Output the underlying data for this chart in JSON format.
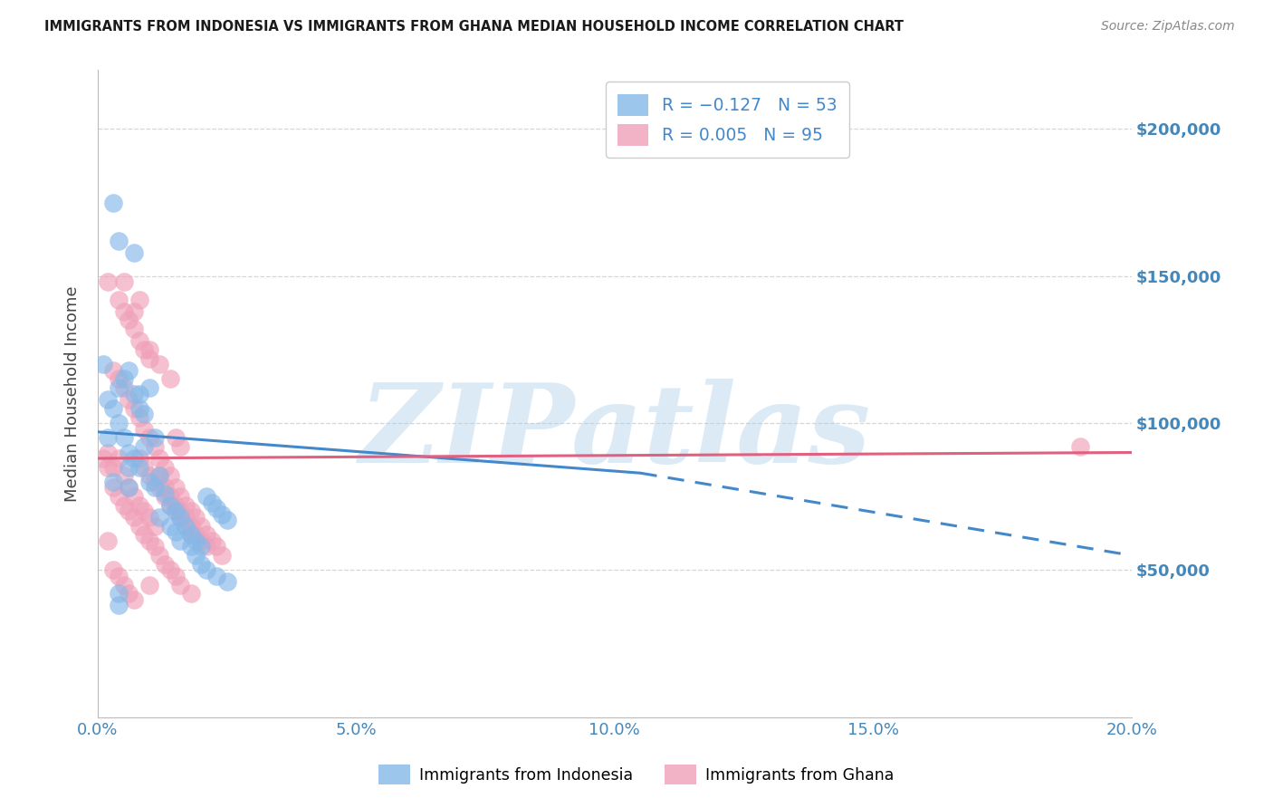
{
  "title": "IMMIGRANTS FROM INDONESIA VS IMMIGRANTS FROM GHANA MEDIAN HOUSEHOLD INCOME CORRELATION CHART",
  "source": "Source: ZipAtlas.com",
  "ylabel": "Median Household Income",
  "xlim": [
    0.0,
    0.2
  ],
  "ylim": [
    0,
    220000
  ],
  "yticks": [
    50000,
    100000,
    150000,
    200000
  ],
  "ytick_labels": [
    "$50,000",
    "$100,000",
    "$150,000",
    "$200,000"
  ],
  "xticks": [
    0.0,
    0.05,
    0.1,
    0.15,
    0.2
  ],
  "xtick_labels": [
    "0.0%",
    "5.0%",
    "10.0%",
    "15.0%",
    "20.0%"
  ],
  "indonesia_color": "#85b8e8",
  "ghana_color": "#f0a0b8",
  "indonesia_line_color": "#4488cc",
  "ghana_line_color": "#e06080",
  "indonesia_line_solid": [
    [
      0.0,
      97000
    ],
    [
      0.105,
      83000
    ]
  ],
  "indonesia_line_dashed": [
    [
      0.105,
      83000
    ],
    [
      0.2,
      55000
    ]
  ],
  "ghana_line": [
    [
      0.0,
      88000
    ],
    [
      0.2,
      90000
    ]
  ],
  "indonesia_scatter": [
    [
      0.001,
      120000
    ],
    [
      0.002,
      108000
    ],
    [
      0.002,
      95000
    ],
    [
      0.003,
      105000
    ],
    [
      0.003,
      175000
    ],
    [
      0.003,
      80000
    ],
    [
      0.004,
      112000
    ],
    [
      0.004,
      162000
    ],
    [
      0.004,
      100000
    ],
    [
      0.004,
      42000
    ],
    [
      0.005,
      115000
    ],
    [
      0.005,
      95000
    ],
    [
      0.006,
      118000
    ],
    [
      0.006,
      90000
    ],
    [
      0.006,
      78000
    ],
    [
      0.006,
      85000
    ],
    [
      0.007,
      110000
    ],
    [
      0.007,
      88000
    ],
    [
      0.007,
      158000
    ],
    [
      0.008,
      105000
    ],
    [
      0.008,
      85000
    ],
    [
      0.008,
      110000
    ],
    [
      0.009,
      92000
    ],
    [
      0.009,
      103000
    ],
    [
      0.01,
      80000
    ],
    [
      0.01,
      112000
    ],
    [
      0.011,
      78000
    ],
    [
      0.011,
      95000
    ],
    [
      0.012,
      82000
    ],
    [
      0.012,
      68000
    ],
    [
      0.013,
      76000
    ],
    [
      0.014,
      72000
    ],
    [
      0.014,
      65000
    ],
    [
      0.015,
      70000
    ],
    [
      0.015,
      63000
    ],
    [
      0.016,
      68000
    ],
    [
      0.016,
      60000
    ],
    [
      0.017,
      65000
    ],
    [
      0.018,
      62000
    ],
    [
      0.018,
      58000
    ],
    [
      0.019,
      60000
    ],
    [
      0.019,
      55000
    ],
    [
      0.02,
      58000
    ],
    [
      0.02,
      52000
    ],
    [
      0.021,
      75000
    ],
    [
      0.021,
      50000
    ],
    [
      0.022,
      73000
    ],
    [
      0.023,
      71000
    ],
    [
      0.023,
      48000
    ],
    [
      0.024,
      69000
    ],
    [
      0.025,
      67000
    ],
    [
      0.025,
      46000
    ],
    [
      0.004,
      38000
    ]
  ],
  "ghana_scatter": [
    [
      0.001,
      88000
    ],
    [
      0.002,
      90000
    ],
    [
      0.002,
      148000
    ],
    [
      0.002,
      85000
    ],
    [
      0.002,
      60000
    ],
    [
      0.003,
      85000
    ],
    [
      0.003,
      118000
    ],
    [
      0.003,
      78000
    ],
    [
      0.003,
      50000
    ],
    [
      0.004,
      88000
    ],
    [
      0.004,
      142000
    ],
    [
      0.004,
      115000
    ],
    [
      0.004,
      75000
    ],
    [
      0.004,
      48000
    ],
    [
      0.005,
      82000
    ],
    [
      0.005,
      138000
    ],
    [
      0.005,
      112000
    ],
    [
      0.005,
      72000
    ],
    [
      0.005,
      45000
    ],
    [
      0.005,
      148000
    ],
    [
      0.006,
      78000
    ],
    [
      0.006,
      135000
    ],
    [
      0.006,
      108000
    ],
    [
      0.006,
      70000
    ],
    [
      0.006,
      42000
    ],
    [
      0.007,
      75000
    ],
    [
      0.007,
      132000
    ],
    [
      0.007,
      105000
    ],
    [
      0.007,
      68000
    ],
    [
      0.007,
      40000
    ],
    [
      0.007,
      138000
    ],
    [
      0.008,
      72000
    ],
    [
      0.008,
      128000
    ],
    [
      0.008,
      102000
    ],
    [
      0.008,
      65000
    ],
    [
      0.008,
      88000
    ],
    [
      0.009,
      70000
    ],
    [
      0.009,
      125000
    ],
    [
      0.009,
      98000
    ],
    [
      0.009,
      62000
    ],
    [
      0.009,
      85000
    ],
    [
      0.01,
      68000
    ],
    [
      0.01,
      122000
    ],
    [
      0.01,
      95000
    ],
    [
      0.01,
      60000
    ],
    [
      0.01,
      82000
    ],
    [
      0.01,
      45000
    ],
    [
      0.01,
      125000
    ],
    [
      0.011,
      65000
    ],
    [
      0.011,
      92000
    ],
    [
      0.011,
      80000
    ],
    [
      0.011,
      58000
    ],
    [
      0.012,
      82000
    ],
    [
      0.012,
      88000
    ],
    [
      0.012,
      78000
    ],
    [
      0.012,
      55000
    ],
    [
      0.012,
      120000
    ],
    [
      0.013,
      78000
    ],
    [
      0.013,
      85000
    ],
    [
      0.013,
      75000
    ],
    [
      0.013,
      52000
    ],
    [
      0.014,
      75000
    ],
    [
      0.014,
      82000
    ],
    [
      0.014,
      72000
    ],
    [
      0.014,
      50000
    ],
    [
      0.014,
      115000
    ],
    [
      0.015,
      72000
    ],
    [
      0.015,
      78000
    ],
    [
      0.015,
      70000
    ],
    [
      0.015,
      48000
    ],
    [
      0.015,
      95000
    ],
    [
      0.016,
      70000
    ],
    [
      0.016,
      75000
    ],
    [
      0.016,
      68000
    ],
    [
      0.016,
      45000
    ],
    [
      0.016,
      92000
    ],
    [
      0.017,
      68000
    ],
    [
      0.017,
      72000
    ],
    [
      0.017,
      65000
    ],
    [
      0.018,
      65000
    ],
    [
      0.018,
      70000
    ],
    [
      0.018,
      62000
    ],
    [
      0.018,
      42000
    ],
    [
      0.019,
      62000
    ],
    [
      0.019,
      68000
    ],
    [
      0.02,
      60000
    ],
    [
      0.02,
      65000
    ],
    [
      0.021,
      58000
    ],
    [
      0.021,
      62000
    ],
    [
      0.022,
      60000
    ],
    [
      0.023,
      58000
    ],
    [
      0.024,
      55000
    ],
    [
      0.008,
      142000
    ],
    [
      0.19,
      92000
    ]
  ],
  "watermark_text": "ZIPatlas",
  "watermark_color": "#a8cce8",
  "watermark_alpha": 0.4,
  "title_color": "#1a1a1a",
  "source_color": "#888888",
  "axis_label_color": "#444444",
  "tick_color": "#4488bb",
  "grid_color": "#cccccc",
  "background_color": "#ffffff",
  "legend_text_color": "#4488cc",
  "legend_edge_color": "#cccccc"
}
